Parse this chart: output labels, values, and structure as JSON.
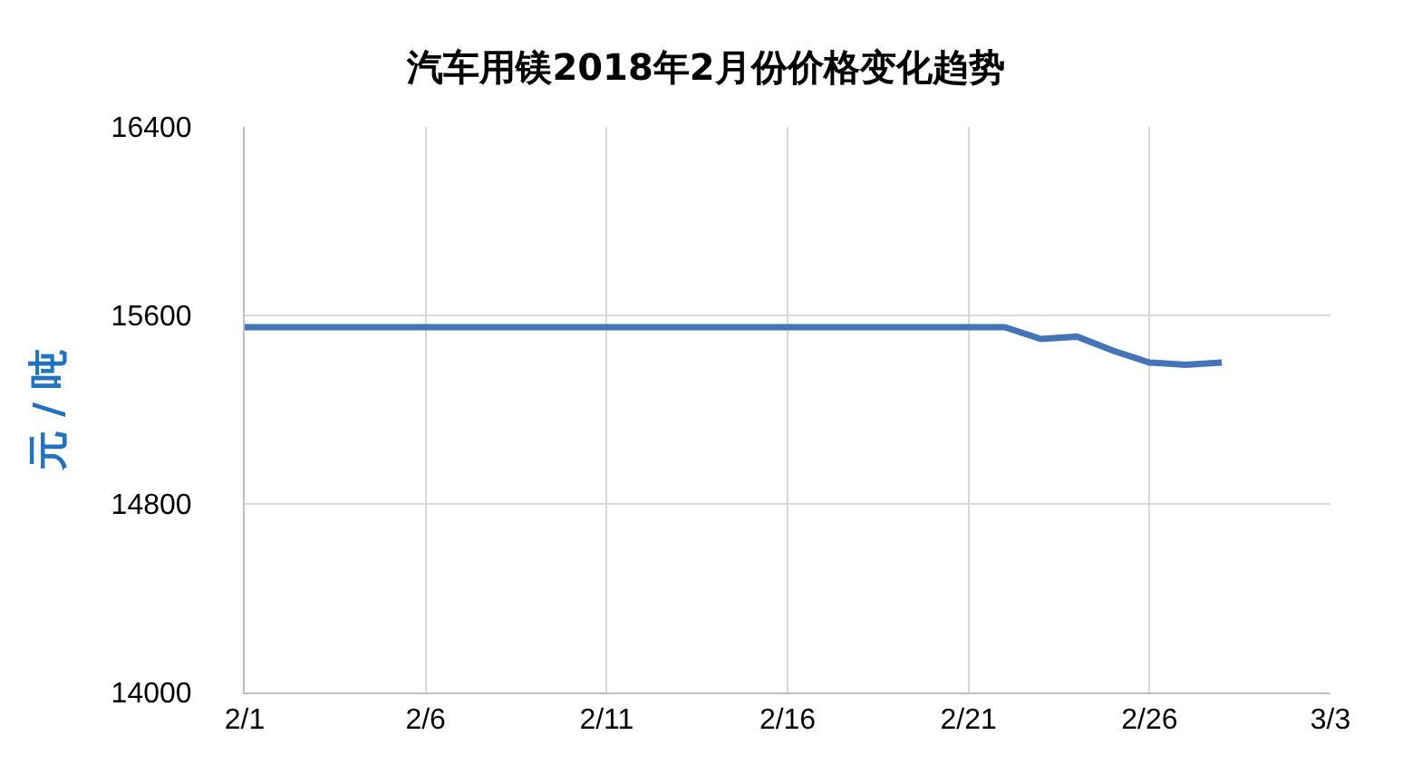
{
  "chart_data": {
    "type": "line",
    "title": "汽车用镁2018年2月份价格变化趋势",
    "ylabel": "元 / 吨",
    "x": [
      "--02-01",
      "--02-05",
      "--02-10",
      "--02-15",
      "--02-20",
      "--02-22",
      "--02-23",
      "--02-24",
      "--02-25",
      "--02-26",
      "--02-27",
      "--02-28"
    ],
    "series": [
      {
        "color": "#4575b9",
        "values": [
          15550,
          15550,
          15550,
          15550,
          15550,
          15550,
          15500,
          15510,
          15450,
          15400,
          15390,
          15400
        ]
      }
    ],
    "xlim": [
      "--02-01",
      "--03-03"
    ],
    "xticks": [
      {
        "value": "--02-01",
        "label": "2/1"
      },
      {
        "value": "--02-06",
        "label": "2/6"
      },
      {
        "value": "--02-11",
        "label": "2/11"
      },
      {
        "value": "--02-16",
        "label": "2/16"
      },
      {
        "value": "--02-21",
        "label": "2/21"
      },
      {
        "value": "--02-26",
        "label": "2/26"
      },
      {
        "value": "--03-03",
        "label": "3/3"
      }
    ],
    "ylim": [
      14000,
      16400
    ],
    "yticks": [
      14000,
      14800,
      15600,
      16400
    ],
    "grid": true,
    "marker": "none",
    "line_style": "solid"
  }
}
